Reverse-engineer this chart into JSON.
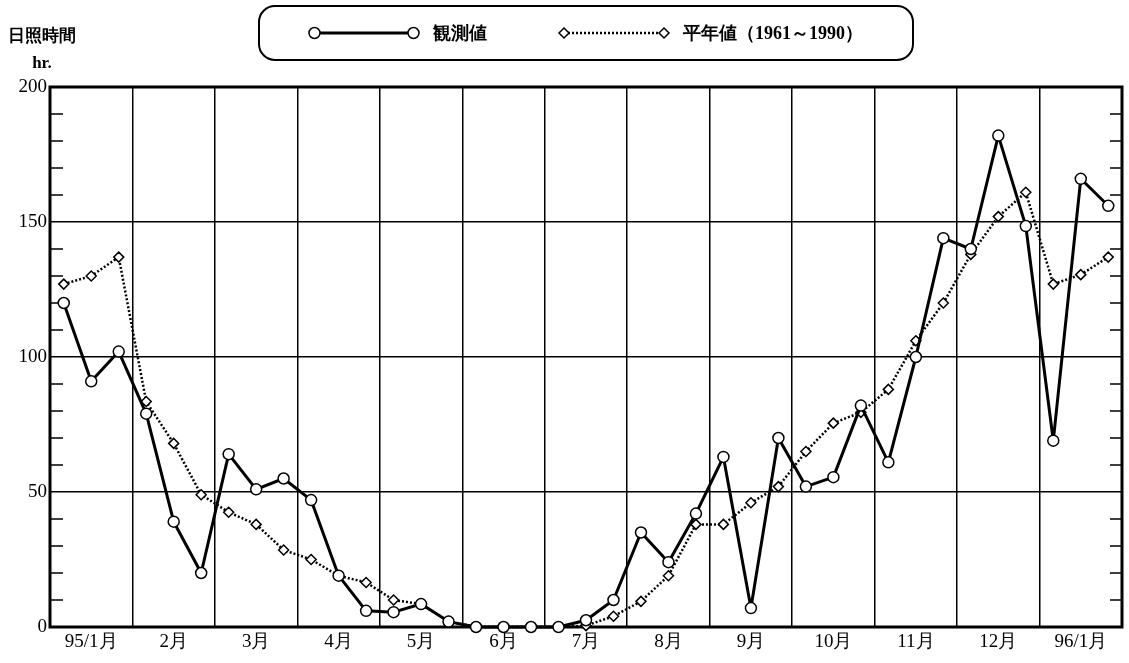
{
  "chart_data": {
    "type": "line",
    "ylabel": "日照時間\nhr.",
    "categories": [
      null,
      "95/1月",
      null,
      null,
      "2月",
      null,
      null,
      "3月",
      null,
      null,
      "4月",
      null,
      null,
      "5月",
      null,
      null,
      "6月",
      null,
      null,
      "7月",
      null,
      null,
      "8月",
      null,
      null,
      "9月",
      null,
      null,
      "10月",
      null,
      null,
      "11月",
      null,
      null,
      "12月",
      null,
      null,
      "96/1月",
      null
    ],
    "series": [
      {
        "name": "観測値",
        "color": "#000000",
        "marker": "circle",
        "line_style": "solid",
        "values": [
          120,
          91,
          102,
          79,
          39,
          20,
          64,
          51,
          55,
          47,
          19,
          6,
          5.5,
          8.5,
          2,
          0,
          0,
          0,
          0,
          2.5,
          10,
          35,
          24,
          42,
          63,
          7,
          70,
          52,
          55.5,
          82,
          61,
          100,
          144,
          140,
          182,
          148.5,
          69,
          166,
          156
        ]
      },
      {
        "name": "平年値（1961～1990）",
        "color": "#000000",
        "marker": "diamond",
        "line_style": "dotted",
        "values": [
          127,
          130,
          137,
          83.5,
          68,
          49,
          42.5,
          38,
          28.5,
          25,
          19,
          16.5,
          10,
          8.5,
          2,
          0,
          0,
          0,
          0,
          0.5,
          4,
          9.5,
          19,
          38,
          38,
          46,
          52,
          65,
          75.5,
          79.5,
          88,
          106,
          120,
          138,
          152,
          161,
          127,
          130.5,
          137
        ]
      }
    ],
    "ylim": [
      0,
      200
    ],
    "yticks": [
      0,
      {
        "value": 10,
        "label": null
      },
      {
        "value": 20,
        "label": null
      },
      {
        "value": 30,
        "label": null
      },
      {
        "value": 40,
        "label": null
      },
      50,
      {
        "value": 60,
        "label": null
      },
      {
        "value": 70,
        "label": null
      },
      {
        "value": 80,
        "label": null
      },
      {
        "value": 90,
        "label": null
      },
      100,
      {
        "value": 110,
        "label": null
      },
      {
        "value": 120,
        "label": null
      },
      {
        "value": 130,
        "label": null
      },
      {
        "value": 140,
        "label": null
      },
      150,
      {
        "value": 160,
        "label": null
      },
      {
        "value": 170,
        "label": null
      },
      {
        "value": 180,
        "label": null
      },
      {
        "value": 190,
        "label": null
      },
      200
    ],
    "grid": true,
    "legend": "top"
  }
}
